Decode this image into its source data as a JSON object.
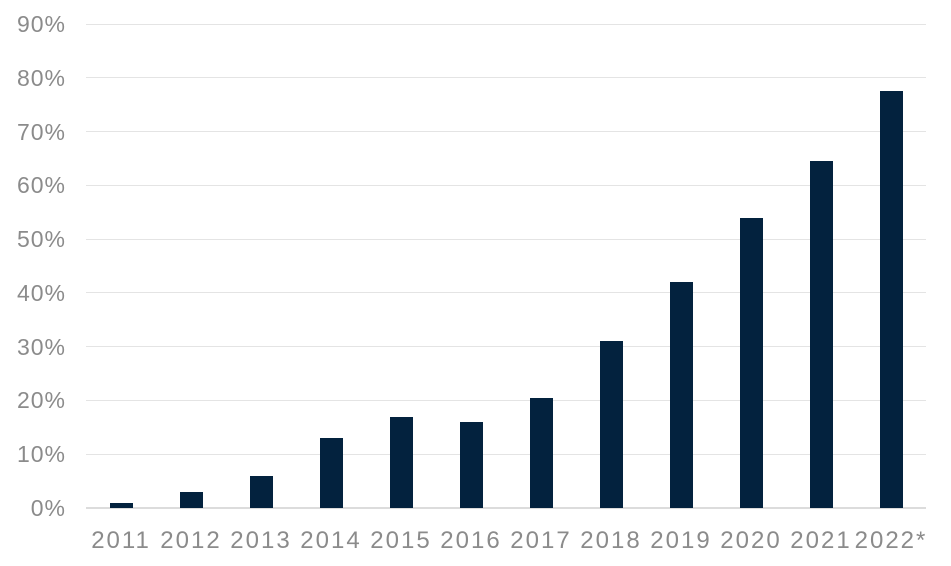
{
  "chart_data": {
    "type": "bar",
    "title": "",
    "xlabel": "",
    "ylabel": "",
    "categories": [
      "2011",
      "2012",
      "2013",
      "2014",
      "2015",
      "2016",
      "2017",
      "2018",
      "2019",
      "2020",
      "2021",
      "2022*"
    ],
    "values": [
      1,
      3,
      6,
      13,
      17,
      16,
      20.5,
      31,
      42,
      54,
      64.5,
      77.5
    ],
    "ylim": [
      0,
      90
    ],
    "y_tick_step": 10,
    "y_ticks": [
      "0%",
      "10%",
      "20%",
      "30%",
      "40%",
      "50%",
      "60%",
      "70%",
      "80%",
      "90%"
    ],
    "grid": "horizontal",
    "legend": "none",
    "colors": {
      "bar": "#03223e",
      "gridline": "#e4e4e4",
      "axis_line": "#dcdcdc",
      "tick_label": "#8b8b8b",
      "background": "#ffffff"
    }
  }
}
